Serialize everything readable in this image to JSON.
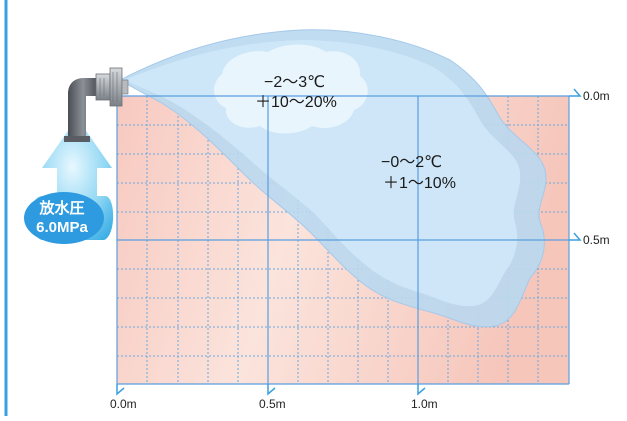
{
  "badge": {
    "line1": "放水圧",
    "line2": "6.0MPa"
  },
  "zones": {
    "outer": {
      "temperature": "−2～3℃",
      "humidity": "＋10～20%"
    },
    "inner": {
      "temperature": "−0～2℃",
      "humidity": "＋1～10%"
    }
  },
  "axes": {
    "x_ticks": [
      "0.0m",
      "0.5m",
      "1.0m"
    ],
    "y_ticks": [
      "0.0m",
      "0.5m"
    ]
  },
  "colors": {
    "spray_outer": "#b9d8f0",
    "spray_inner": "#cfe7f8",
    "grid_line": "#6aa9e0",
    "floor_warm": "#f7c9c0",
    "nozzle": "#9aa0a6",
    "pipe": "#6b6f75",
    "badge_blue": "#2e9be0",
    "arrow_cyan": "#7fd0f0",
    "axis": "#3aa0e0"
  }
}
